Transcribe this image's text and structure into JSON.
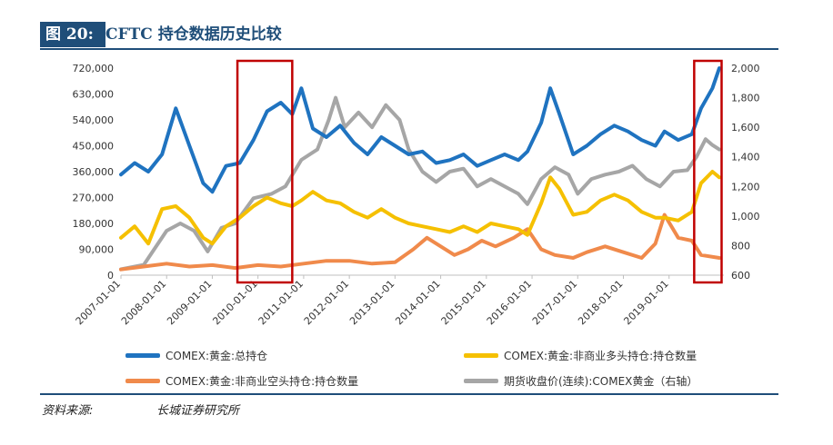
{
  "header": {
    "figure_no": "图 20:",
    "title": "CFTC 持仓数据历史比较"
  },
  "source": {
    "label": "资料来源:",
    "value": "长城证券研究所"
  },
  "colors": {
    "title_bg": "#1f4e79",
    "total": "#1f73c0",
    "long": "#f5c000",
    "short": "#f08a4b",
    "price": "#a6a6a6",
    "highlight": "#c00000"
  },
  "chart_data": {
    "type": "line",
    "x_ticks": [
      "2007-01-01",
      "2008-01-01",
      "2009-01-01",
      "2010-01-01",
      "2011-01-01",
      "2012-01-01",
      "2013-01-01",
      "2014-01-01",
      "2015-01-01",
      "2016-01-01",
      "2017-01-01",
      "2018-01-01",
      "2019-01-01"
    ],
    "y_left": {
      "ticks": [
        "0",
        "90,000",
        "180,000",
        "270,000",
        "360,000",
        "450,000",
        "540,000",
        "630,000",
        "720,000"
      ],
      "range": [
        0,
        720000
      ]
    },
    "y_right": {
      "ticks": [
        "600",
        "800",
        "1,000",
        "1,200",
        "1,400",
        "1,600",
        "1,800",
        "2,000"
      ],
      "range": [
        600,
        2000
      ]
    },
    "x_range": [
      2007.0,
      2020.2
    ],
    "highlight_ranges": [
      [
        2009.55,
        2010.75
      ],
      [
        2019.55,
        2020.15
      ]
    ],
    "series": [
      {
        "name": "COMEX:黄金:总持仓",
        "axis": "left",
        "color": "#1f73c0",
        "points": [
          [
            2007.0,
            350000
          ],
          [
            2007.3,
            390000
          ],
          [
            2007.6,
            360000
          ],
          [
            2007.9,
            420000
          ],
          [
            2008.2,
            580000
          ],
          [
            2008.5,
            450000
          ],
          [
            2008.8,
            320000
          ],
          [
            2009.0,
            290000
          ],
          [
            2009.3,
            380000
          ],
          [
            2009.6,
            390000
          ],
          [
            2009.9,
            470000
          ],
          [
            2010.2,
            570000
          ],
          [
            2010.5,
            600000
          ],
          [
            2010.75,
            560000
          ],
          [
            2010.95,
            650000
          ],
          [
            2011.2,
            510000
          ],
          [
            2011.5,
            480000
          ],
          [
            2011.8,
            520000
          ],
          [
            2012.1,
            460000
          ],
          [
            2012.4,
            420000
          ],
          [
            2012.7,
            480000
          ],
          [
            2013.0,
            450000
          ],
          [
            2013.3,
            420000
          ],
          [
            2013.6,
            430000
          ],
          [
            2013.9,
            390000
          ],
          [
            2014.2,
            400000
          ],
          [
            2014.5,
            420000
          ],
          [
            2014.8,
            380000
          ],
          [
            2015.1,
            400000
          ],
          [
            2015.4,
            420000
          ],
          [
            2015.7,
            400000
          ],
          [
            2015.9,
            430000
          ],
          [
            2016.2,
            530000
          ],
          [
            2016.4,
            650000
          ],
          [
            2016.6,
            560000
          ],
          [
            2016.9,
            420000
          ],
          [
            2017.2,
            450000
          ],
          [
            2017.5,
            490000
          ],
          [
            2017.8,
            520000
          ],
          [
            2018.1,
            500000
          ],
          [
            2018.4,
            470000
          ],
          [
            2018.7,
            450000
          ],
          [
            2018.9,
            500000
          ],
          [
            2019.2,
            470000
          ],
          [
            2019.5,
            490000
          ],
          [
            2019.7,
            580000
          ],
          [
            2019.95,
            650000
          ],
          [
            2020.1,
            720000
          ]
        ]
      },
      {
        "name": "COMEX:黄金:非商业多头持仓:持仓数量",
        "axis": "left",
        "color": "#f5c000",
        "points": [
          [
            2007.0,
            130000
          ],
          [
            2007.3,
            170000
          ],
          [
            2007.6,
            110000
          ],
          [
            2007.9,
            230000
          ],
          [
            2008.2,
            240000
          ],
          [
            2008.5,
            200000
          ],
          [
            2008.8,
            130000
          ],
          [
            2009.0,
            110000
          ],
          [
            2009.3,
            170000
          ],
          [
            2009.6,
            200000
          ],
          [
            2009.9,
            240000
          ],
          [
            2010.2,
            270000
          ],
          [
            2010.5,
            250000
          ],
          [
            2010.75,
            240000
          ],
          [
            2010.95,
            260000
          ],
          [
            2011.2,
            290000
          ],
          [
            2011.5,
            260000
          ],
          [
            2011.8,
            250000
          ],
          [
            2012.1,
            220000
          ],
          [
            2012.4,
            200000
          ],
          [
            2012.7,
            230000
          ],
          [
            2013.0,
            200000
          ],
          [
            2013.3,
            180000
          ],
          [
            2013.6,
            170000
          ],
          [
            2013.9,
            160000
          ],
          [
            2014.2,
            150000
          ],
          [
            2014.5,
            170000
          ],
          [
            2014.8,
            150000
          ],
          [
            2015.1,
            180000
          ],
          [
            2015.4,
            170000
          ],
          [
            2015.7,
            160000
          ],
          [
            2015.9,
            140000
          ],
          [
            2016.2,
            250000
          ],
          [
            2016.4,
            340000
          ],
          [
            2016.6,
            300000
          ],
          [
            2016.9,
            210000
          ],
          [
            2017.2,
            220000
          ],
          [
            2017.5,
            260000
          ],
          [
            2017.8,
            280000
          ],
          [
            2018.1,
            260000
          ],
          [
            2018.4,
            220000
          ],
          [
            2018.7,
            200000
          ],
          [
            2018.9,
            200000
          ],
          [
            2019.2,
            190000
          ],
          [
            2019.5,
            220000
          ],
          [
            2019.7,
            320000
          ],
          [
            2019.95,
            360000
          ],
          [
            2020.1,
            340000
          ]
        ]
      },
      {
        "name": "COMEX:黄金:非商业空头持仓:持仓数量",
        "axis": "left",
        "color": "#f08a4b",
        "points": [
          [
            2007.0,
            20000
          ],
          [
            2007.5,
            30000
          ],
          [
            2008.0,
            40000
          ],
          [
            2008.5,
            30000
          ],
          [
            2009.0,
            35000
          ],
          [
            2009.5,
            25000
          ],
          [
            2010.0,
            35000
          ],
          [
            2010.5,
            30000
          ],
          [
            2011.0,
            40000
          ],
          [
            2011.5,
            50000
          ],
          [
            2012.0,
            50000
          ],
          [
            2012.5,
            40000
          ],
          [
            2013.0,
            45000
          ],
          [
            2013.4,
            90000
          ],
          [
            2013.7,
            130000
          ],
          [
            2014.0,
            100000
          ],
          [
            2014.3,
            70000
          ],
          [
            2014.6,
            90000
          ],
          [
            2014.9,
            120000
          ],
          [
            2015.2,
            100000
          ],
          [
            2015.6,
            130000
          ],
          [
            2015.9,
            160000
          ],
          [
            2016.2,
            90000
          ],
          [
            2016.5,
            70000
          ],
          [
            2016.9,
            60000
          ],
          [
            2017.2,
            80000
          ],
          [
            2017.6,
            100000
          ],
          [
            2018.0,
            80000
          ],
          [
            2018.4,
            60000
          ],
          [
            2018.7,
            110000
          ],
          [
            2018.9,
            210000
          ],
          [
            2019.2,
            130000
          ],
          [
            2019.5,
            120000
          ],
          [
            2019.7,
            70000
          ],
          [
            2020.1,
            60000
          ]
        ]
      },
      {
        "name": "期货收盘价(连续):COMEX黄金（右轴）",
        "axis": "right",
        "color": "#a6a6a6",
        "points": [
          [
            2007.0,
            640
          ],
          [
            2007.5,
            670
          ],
          [
            2008.0,
            900
          ],
          [
            2008.3,
            950
          ],
          [
            2008.6,
            900
          ],
          [
            2008.9,
            760
          ],
          [
            2009.2,
            920
          ],
          [
            2009.5,
            950
          ],
          [
            2009.9,
            1120
          ],
          [
            2010.3,
            1150
          ],
          [
            2010.6,
            1200
          ],
          [
            2010.95,
            1380
          ],
          [
            2011.3,
            1450
          ],
          [
            2011.55,
            1650
          ],
          [
            2011.7,
            1800
          ],
          [
            2011.9,
            1600
          ],
          [
            2012.2,
            1700
          ],
          [
            2012.5,
            1600
          ],
          [
            2012.8,
            1750
          ],
          [
            2013.1,
            1650
          ],
          [
            2013.3,
            1450
          ],
          [
            2013.6,
            1300
          ],
          [
            2013.9,
            1230
          ],
          [
            2014.2,
            1300
          ],
          [
            2014.5,
            1320
          ],
          [
            2014.8,
            1200
          ],
          [
            2015.1,
            1250
          ],
          [
            2015.4,
            1200
          ],
          [
            2015.7,
            1150
          ],
          [
            2015.9,
            1080
          ],
          [
            2016.2,
            1250
          ],
          [
            2016.5,
            1330
          ],
          [
            2016.8,
            1280
          ],
          [
            2017.0,
            1150
          ],
          [
            2017.3,
            1250
          ],
          [
            2017.6,
            1280
          ],
          [
            2017.9,
            1300
          ],
          [
            2018.2,
            1340
          ],
          [
            2018.5,
            1250
          ],
          [
            2018.8,
            1200
          ],
          [
            2019.1,
            1300
          ],
          [
            2019.4,
            1310
          ],
          [
            2019.6,
            1400
          ],
          [
            2019.8,
            1520
          ],
          [
            2019.95,
            1480
          ],
          [
            2020.1,
            1450
          ]
        ]
      }
    ]
  }
}
